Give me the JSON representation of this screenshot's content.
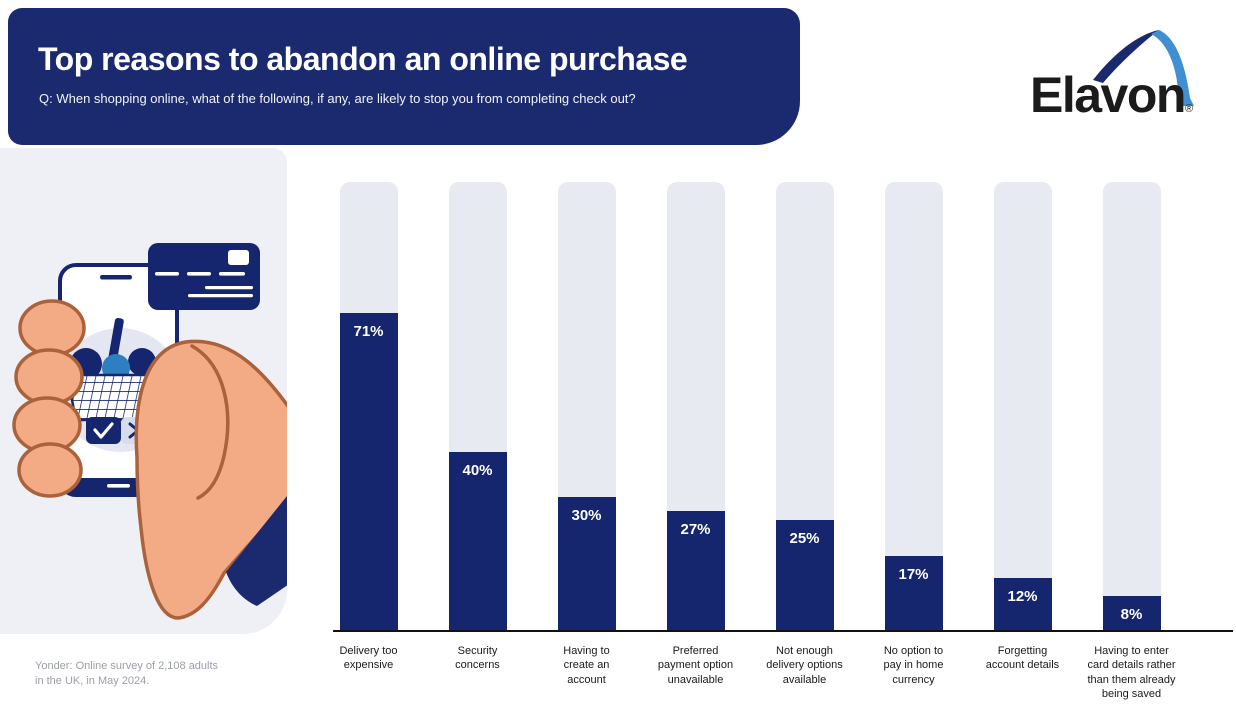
{
  "header": {
    "title": "Top reasons to abandon an online purchase",
    "subtitle": "Q: When shopping online, what of the following, if any, are likely to stop you from completing check out?"
  },
  "logo": {
    "text": "Elavon",
    "registered_mark": "®"
  },
  "source": {
    "line1": "Yonder: Online survey of 2,108 adults",
    "line2": "in the UK, in May 2024."
  },
  "chart_data": {
    "type": "bar",
    "title": "Top reasons to abandon an online purchase",
    "categories": [
      "Delivery too expensive",
      "Security concerns",
      "Having to create an account",
      "Preferred payment option unavailable",
      "Not enough delivery options available",
      "No option to pay in home currency",
      "Forgetting account details",
      "Having to enter card details rather than them already being saved"
    ],
    "categories_wrapped": [
      "Delivery too\nexpensive",
      "Security\nconcerns",
      "Having to\ncreate an\naccount",
      "Preferred\npayment option\nunavailable",
      "Not enough\ndelivery options\navailable",
      "No option to\npay in home\ncurrency",
      "Forgetting\naccount details",
      "Having to enter\ncard details rather\nthan them already\nbeing saved"
    ],
    "values": [
      71,
      40,
      30,
      27,
      25,
      17,
      12,
      8
    ],
    "value_labels": [
      "71%",
      "40%",
      "30%",
      "27%",
      "25%",
      "17%",
      "12%",
      "8%"
    ],
    "xlabel": "",
    "ylabel": "",
    "ylim": [
      0,
      100
    ],
    "grid": false,
    "legend": "none"
  },
  "colors": {
    "navy": "#15256e",
    "header_navy": "#1b2a6e",
    "track": "#e7eaf1",
    "panel": "#eef0f5",
    "light_blue": "#2e7fc0",
    "skin": "#f2ab85",
    "skin_outline": "#ab613a",
    "screen_lavender": "#e4e6f1",
    "x_btn": "#d8dbe9",
    "axis": "#111111"
  }
}
